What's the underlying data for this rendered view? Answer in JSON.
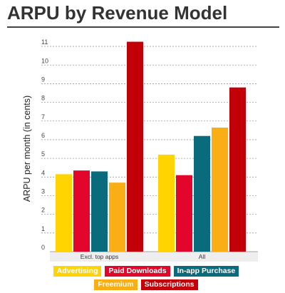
{
  "header": {
    "title": "ARPU by Revenue Model"
  },
  "chart_data": {
    "type": "bar",
    "title": "ARPU by Revenue Model",
    "xlabel": "",
    "ylabel": "ARPU per month (in cents)",
    "categories": [
      "Excl. top apps",
      "All"
    ],
    "yticks": [
      "0",
      "1",
      "2",
      "3",
      "4",
      "5",
      "6",
      "7",
      "8",
      "9",
      "10",
      "11"
    ],
    "ylim": [
      0,
      11.5
    ],
    "grid": true,
    "legend_position": "bottom",
    "series": [
      {
        "name": "Advertising",
        "color": "#FFD400",
        "values": [
          4.15,
          5.2
        ]
      },
      {
        "name": "Paid Downloads",
        "color": "#E2072A",
        "values": [
          4.35,
          4.1
        ]
      },
      {
        "name": "In-app Purchase",
        "color": "#0A6B7C",
        "values": [
          4.3,
          6.2
        ]
      },
      {
        "name": "Freemium",
        "color": "#F9AE16",
        "values": [
          3.7,
          6.65
        ]
      },
      {
        "name": "Subscriptions",
        "color": "#C10008",
        "values": [
          11.25,
          8.8
        ]
      }
    ]
  }
}
